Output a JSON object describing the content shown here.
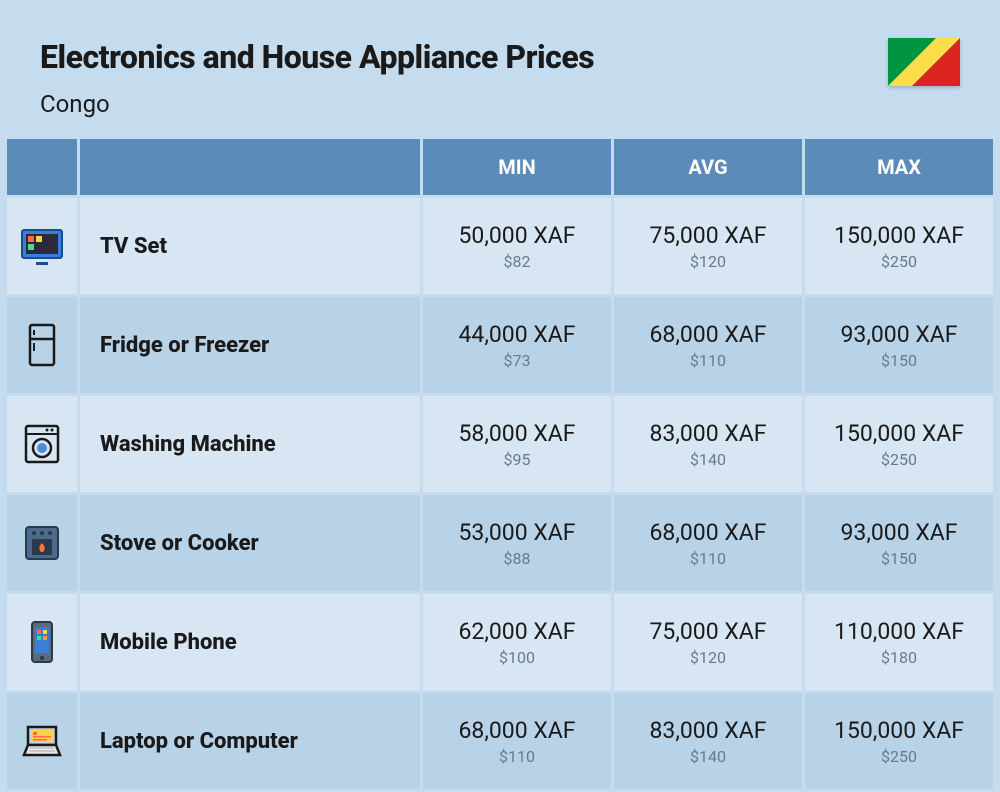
{
  "header": {
    "title": "Electronics and House Appliance Prices",
    "country": "Congo"
  },
  "flag": {
    "colors": {
      "green": "#009543",
      "yellow": "#fbde4a",
      "red": "#dc241f"
    }
  },
  "table": {
    "columns": [
      "MIN",
      "AVG",
      "MAX"
    ],
    "header_bg": "#5b8bb8",
    "header_fg": "#ffffff",
    "row_bg_odd": "#d7e6f2",
    "row_bg_even": "#b8d2e8",
    "price_main_color": "#1a1a1a",
    "price_sub_color": "#6b7a8a",
    "rows": [
      {
        "icon": "tv",
        "name": "TV Set",
        "min": {
          "xaf": "50,000 XAF",
          "usd": "$82"
        },
        "avg": {
          "xaf": "75,000 XAF",
          "usd": "$120"
        },
        "max": {
          "xaf": "150,000 XAF",
          "usd": "$250"
        }
      },
      {
        "icon": "fridge",
        "name": "Fridge or Freezer",
        "min": {
          "xaf": "44,000 XAF",
          "usd": "$73"
        },
        "avg": {
          "xaf": "68,000 XAF",
          "usd": "$110"
        },
        "max": {
          "xaf": "93,000 XAF",
          "usd": "$150"
        }
      },
      {
        "icon": "washer",
        "name": "Washing Machine",
        "min": {
          "xaf": "58,000 XAF",
          "usd": "$95"
        },
        "avg": {
          "xaf": "83,000 XAF",
          "usd": "$140"
        },
        "max": {
          "xaf": "150,000 XAF",
          "usd": "$250"
        }
      },
      {
        "icon": "stove",
        "name": "Stove or Cooker",
        "min": {
          "xaf": "53,000 XAF",
          "usd": "$88"
        },
        "avg": {
          "xaf": "68,000 XAF",
          "usd": "$110"
        },
        "max": {
          "xaf": "93,000 XAF",
          "usd": "$150"
        }
      },
      {
        "icon": "phone",
        "name": "Mobile Phone",
        "min": {
          "xaf": "62,000 XAF",
          "usd": "$100"
        },
        "avg": {
          "xaf": "75,000 XAF",
          "usd": "$120"
        },
        "max": {
          "xaf": "110,000 XAF",
          "usd": "$180"
        }
      },
      {
        "icon": "laptop",
        "name": "Laptop or Computer",
        "min": {
          "xaf": "68,000 XAF",
          "usd": "$110"
        },
        "avg": {
          "xaf": "83,000 XAF",
          "usd": "$140"
        },
        "max": {
          "xaf": "150,000 XAF",
          "usd": "$250"
        }
      }
    ]
  }
}
